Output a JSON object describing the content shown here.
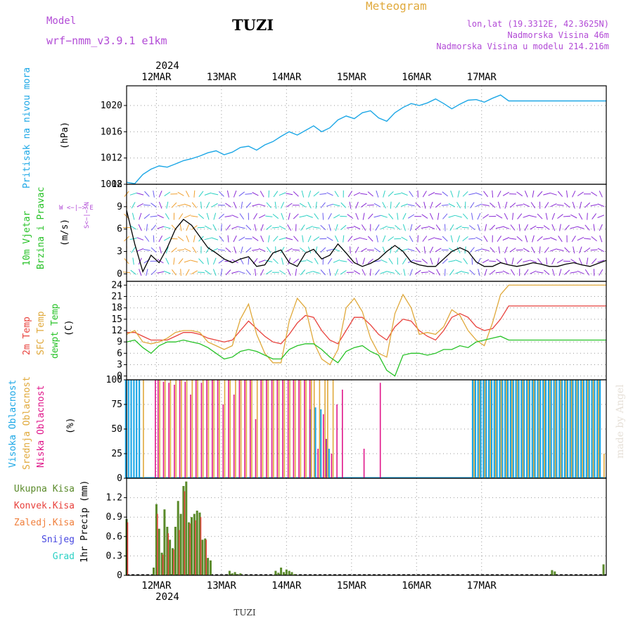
{
  "header": {
    "model_label": "Model",
    "model_name": "wrf−nmm_v3.9.1  e1km",
    "station_title": "TUZI",
    "product_title": "Meteogram",
    "coords": "lon,lat (19.3312E, 42.3625N)",
    "elevation": "Nadmorska Visina 46m",
    "model_elevation": "Nadmorska Visina u modelu 214.216m",
    "footer_station": "TUZI",
    "credit": "made by Angel"
  },
  "colors": {
    "pressure": "#1ca7e6",
    "wind_black": "#000000",
    "temp_2m": "#e8413c",
    "temp_sfc": "#e0a93b",
    "dewpt": "#27c227",
    "cloud_high": "#1ca7e6",
    "cloud_mid": "#e0a93b",
    "cloud_low": "#e0168a",
    "precip_total": "#5a8a2a",
    "precip_conv": "#e8413c",
    "precip_frz": "#f07f3c",
    "snow": "#4646e0",
    "hail": "#2bd1c4",
    "label_magenta": "#b24bd6",
    "label_orange": "#e0a93b"
  },
  "time_axis": {
    "year": "2024",
    "day_labels": [
      "12MAR",
      "13MAR",
      "14MAR",
      "15MAR",
      "16MAR",
      "17MAR"
    ]
  },
  "panels": {
    "pressure": {
      "title": "Pritisak na nivou mora",
      "unit": "(hPa)"
    },
    "wind": {
      "title_line1": "10m Vjetar",
      "title_line2": "Brzina i Pravac",
      "unit": "(m/s)",
      "compass_ew": "W <−|−> E",
      "compass_ns": "S<−|−>N"
    },
    "temp": {
      "title_line1": "2m Temp",
      "title_line2": "SFC Temp",
      "title_line3": "dewpt Temp",
      "unit": "(C)"
    },
    "cloud": {
      "title_line1": "Visoka Oblacnost",
      "title_line2": "Srednja Oblacnost",
      "title_line3": "Niska Oblacnost",
      "unit": "(%)"
    },
    "precip": {
      "unit": "1hr Precip (mm)",
      "legend": [
        "Ukupna Kisa",
        "Konvek.Kisa",
        "Zaledj.Kisa",
        "Snijeg",
        "Grad"
      ]
    }
  },
  "chart_data": [
    {
      "type": "line",
      "name": "pressure",
      "x_unit": "hours from 2024-03-11 13:00",
      "ylim": [
        1008,
        1023
      ],
      "yticks": [
        1008,
        1012,
        1016,
        1020
      ],
      "x": [
        0,
        3,
        6,
        9,
        12,
        15,
        18,
        21,
        24,
        27,
        30,
        33,
        36,
        39,
        42,
        45,
        48,
        51,
        54,
        57,
        60,
        63,
        66,
        69,
        72,
        75,
        78,
        81,
        84,
        87,
        90,
        93,
        96,
        99,
        102,
        105,
        108,
        111,
        114,
        117,
        120,
        123,
        126,
        129,
        132,
        135,
        138,
        141,
        144,
        147,
        150,
        153,
        156,
        159,
        162,
        165,
        168,
        171,
        174,
        177
      ],
      "values": [
        1008.3,
        1008.1,
        1009.5,
        1010.3,
        1010.8,
        1010.6,
        1011.1,
        1011.6,
        1011.9,
        1012.3,
        1012.8,
        1013.1,
        1012.5,
        1012.9,
        1013.6,
        1013.8,
        1013.2,
        1014.0,
        1014.5,
        1015.3,
        1016.0,
        1015.5,
        1016.2,
        1016.9,
        1016.0,
        1016.6,
        1017.8,
        1018.4,
        1018.0,
        1018.9,
        1019.2,
        1018.1,
        1017.6,
        1018.9,
        1019.7,
        1020.3,
        1020.0,
        1020.4,
        1021.0,
        1020.3,
        1019.5,
        1020.2,
        1020.8,
        1020.9,
        1020.5,
        1021.1,
        1021.6,
        1020.7,
        1020.7,
        1020.7,
        1020.7,
        1020.7,
        1020.7,
        1020.7,
        1020.7,
        1020.7,
        1020.7,
        1020.7,
        1020.7,
        1020.7
      ]
    },
    {
      "type": "line",
      "name": "wind_speed",
      "ylim": [
        -1,
        12
      ],
      "yticks": [
        0,
        3,
        6,
        9,
        12
      ],
      "x": [
        0,
        3,
        6,
        9,
        12,
        15,
        18,
        21,
        24,
        27,
        30,
        33,
        36,
        39,
        42,
        45,
        48,
        51,
        54,
        57,
        60,
        63,
        66,
        69,
        72,
        75,
        78,
        81,
        84,
        87,
        90,
        93,
        96,
        99,
        102,
        105,
        108,
        111,
        114,
        117,
        120,
        123,
        126,
        129,
        132,
        135,
        138,
        141,
        144,
        147,
        150,
        153,
        156,
        159,
        162,
        165,
        168,
        171,
        174,
        177
      ],
      "values": [
        8.5,
        4.0,
        0.3,
        2.5,
        1.5,
        3.5,
        6.0,
        7.3,
        6.5,
        5.0,
        3.5,
        2.8,
        2.0,
        1.5,
        2.0,
        2.3,
        1.0,
        1.2,
        2.8,
        3.2,
        1.5,
        1.0,
        2.8,
        3.3,
        2.0,
        2.5,
        4.0,
        2.8,
        1.5,
        1.0,
        1.4,
        2.0,
        3.0,
        3.8,
        3.0,
        1.6,
        1.2,
        1.0,
        1.0,
        2.0,
        3.0,
        3.5,
        3.0,
        1.6,
        1.0,
        1.0,
        1.5,
        1.2,
        1.0,
        1.2,
        1.5,
        1.3,
        1.0,
        1.0,
        1.3,
        1.5,
        1.2,
        1.0,
        1.4,
        1.8
      ]
    },
    {
      "type": "line",
      "name": "temperature",
      "ylim": [
        -1,
        25
      ],
      "yticks": [
        0,
        3,
        6,
        9,
        12,
        15,
        18,
        21,
        24
      ],
      "x": [
        0,
        3,
        6,
        9,
        12,
        15,
        18,
        21,
        24,
        27,
        30,
        33,
        36,
        39,
        42,
        45,
        48,
        51,
        54,
        57,
        60,
        63,
        66,
        69,
        72,
        75,
        78,
        81,
        84,
        87,
        90,
        93,
        96,
        99,
        102,
        105,
        108,
        111,
        114,
        117,
        120,
        123,
        126,
        129,
        132,
        135,
        138,
        141,
        144,
        147,
        150,
        153,
        156,
        159,
        162,
        165,
        168,
        171,
        174,
        177
      ],
      "series": [
        {
          "name": "2m Temp",
          "values": [
            11.5,
            11.5,
            10.5,
            9.5,
            9.5,
            9.5,
            10.5,
            11.5,
            11.5,
            11.0,
            10.0,
            9.5,
            9.0,
            9.5,
            12.0,
            14.5,
            12.5,
            10.5,
            9.0,
            8.5,
            11.0,
            14.0,
            16.0,
            15.5,
            12.0,
            9.5,
            8.5,
            12.0,
            15.5,
            15.5,
            13.5,
            11.0,
            9.5,
            13.0,
            15.0,
            14.5,
            12.0,
            10.5,
            9.5,
            12.0,
            15.5,
            16.5,
            15.5,
            13.0,
            12.0,
            12.5,
            15.0,
            18.5,
            18.5,
            18.5,
            18.5,
            18.5,
            18.5,
            18.5,
            18.5,
            18.5,
            18.5,
            18.5,
            18.5,
            18.5
          ]
        },
        {
          "name": "SFC Temp",
          "values": [
            11.0,
            12.0,
            9.0,
            8.5,
            9.0,
            10.0,
            11.5,
            12.0,
            12.0,
            11.5,
            9.0,
            8.0,
            7.0,
            8.0,
            15.0,
            19.0,
            11.0,
            6.0,
            3.5,
            3.5,
            14.5,
            20.5,
            18.0,
            9.0,
            4.5,
            3.0,
            7.0,
            18.0,
            20.5,
            17.0,
            10.0,
            6.0,
            5.0,
            16.5,
            21.5,
            18.0,
            11.0,
            11.5,
            11.0,
            13.0,
            17.5,
            16.0,
            12.0,
            9.5,
            8.0,
            14.0,
            21.5,
            24.0,
            24.0,
            24.0,
            24.0,
            24.0,
            24.0,
            24.0,
            24.0,
            24.0,
            24.0,
            24.0,
            24.0,
            24.0
          ]
        },
        {
          "name": "dewpt Temp",
          "values": [
            9.0,
            9.5,
            7.5,
            6.0,
            8.0,
            9.0,
            9.0,
            9.5,
            9.0,
            8.5,
            7.5,
            6.0,
            4.5,
            5.0,
            6.5,
            7.0,
            6.5,
            5.5,
            4.5,
            4.5,
            7.0,
            8.0,
            8.5,
            8.5,
            7.0,
            5.0,
            3.5,
            6.5,
            7.5,
            8.0,
            6.5,
            5.5,
            1.5,
            0.0,
            5.5,
            6.0,
            6.0,
            5.5,
            6.0,
            7.0,
            7.0,
            8.0,
            7.5,
            9.0,
            9.5,
            10.0,
            10.5,
            9.5,
            9.5,
            9.5,
            9.5,
            9.5,
            9.5,
            9.5,
            9.5,
            9.5,
            9.5,
            9.5,
            9.5,
            9.5
          ]
        }
      ]
    },
    {
      "type": "bar",
      "name": "cloud_cover",
      "ylim": [
        0,
        100
      ],
      "yticks": [
        0,
        25,
        50,
        75,
        100
      ],
      "x_unit": "hours from 2024-03-11 13:00",
      "series": [
        {
          "name": "Visoka Oblacnost",
          "x": [
            0,
            1,
            2,
            3,
            4,
            5,
            68,
            70,
            72,
            74,
            75,
            128,
            129,
            130,
            131,
            132,
            133,
            134,
            135,
            136,
            137,
            138,
            139,
            140,
            141,
            142,
            143,
            144,
            145,
            146,
            147,
            148,
            149,
            150,
            151,
            152,
            153,
            154,
            155,
            156,
            157,
            158,
            159,
            160,
            161,
            162,
            163,
            164,
            165,
            166,
            167,
            168,
            169,
            170,
            171,
            172,
            173,
            174,
            175
          ],
          "values": [
            100,
            100,
            100,
            100,
            100,
            100,
            70,
            72,
            70,
            40,
            30,
            100,
            100,
            100,
            100,
            100,
            100,
            100,
            100,
            100,
            100,
            100,
            100,
            100,
            100,
            100,
            100,
            100,
            100,
            100,
            100,
            100,
            100,
            100,
            100,
            100,
            100,
            100,
            100,
            100,
            100,
            100,
            100,
            100,
            100,
            100,
            100,
            100,
            100,
            100,
            100,
            100,
            100,
            100,
            100,
            100,
            100,
            100,
            100
          ]
        },
        {
          "name": "Srednja Oblacnost",
          "x": [
            6,
            12,
            14,
            16,
            18,
            20,
            22,
            24,
            26,
            28,
            30,
            32,
            34,
            36,
            38,
            40,
            42,
            44,
            46,
            48,
            50,
            52,
            54,
            56,
            58,
            60,
            62,
            64,
            66,
            68,
            69,
            71,
            73,
            74,
            76,
            128,
            130,
            132,
            134,
            136,
            138,
            140,
            142,
            144,
            146,
            148,
            150,
            152,
            154,
            156,
            158,
            160,
            162,
            164,
            166,
            168,
            170,
            172,
            174,
            176
          ],
          "values": [
            100,
            100,
            100,
            100,
            100,
            100,
            100,
            100,
            100,
            100,
            100,
            100,
            100,
            100,
            100,
            100,
            100,
            100,
            100,
            100,
            100,
            100,
            100,
            100,
            100,
            100,
            100,
            100,
            100,
            100,
            100,
            100,
            100,
            100,
            100,
            100,
            100,
            100,
            100,
            100,
            100,
            100,
            100,
            100,
            100,
            100,
            100,
            100,
            100,
            100,
            100,
            100,
            100,
            100,
            100,
            100,
            100,
            100,
            100,
            25
          ]
        },
        {
          "name": "Niska Oblacnost",
          "x": [
            10,
            11,
            13,
            15,
            17,
            19,
            21,
            23,
            25,
            27,
            29,
            31,
            33,
            35,
            37,
            39,
            41,
            43,
            45,
            47,
            49,
            51,
            53,
            55,
            57,
            59,
            61,
            63,
            65,
            67,
            70,
            72,
            73,
            75,
            77,
            79,
            87,
            93
          ],
          "values": [
            100,
            100,
            98,
            97,
            95,
            100,
            98,
            85,
            100,
            97,
            100,
            100,
            100,
            75,
            100,
            85,
            100,
            100,
            100,
            60,
            100,
            100,
            100,
            100,
            100,
            100,
            100,
            100,
            100,
            100,
            30,
            65,
            40,
            25,
            75,
            90,
            30,
            97
          ]
        }
      ]
    },
    {
      "type": "bar",
      "name": "precipitation",
      "ylim": [
        0,
        1.5
      ],
      "yticks": [
        0,
        0.3,
        0.6,
        0.9,
        1.2
      ],
      "x_unit": "hours from 2024-03-11 13:00",
      "series": [
        {
          "name": "Ukupna Kisa",
          "x": [
            0,
            10,
            11,
            12,
            13,
            14,
            15,
            16,
            17,
            18,
            19,
            20,
            21,
            22,
            23,
            24,
            25,
            26,
            27,
            28,
            29,
            30,
            31,
            38,
            39,
            40,
            41,
            42,
            55,
            56,
            57,
            58,
            59,
            60,
            61,
            62,
            157,
            158,
            176
          ],
          "values": [
            0.87,
            0.12,
            1.1,
            0.72,
            0.35,
            1.02,
            0.75,
            0.55,
            0.42,
            0.75,
            1.15,
            0.95,
            1.38,
            1.45,
            0.82,
            0.9,
            0.95,
            1.0,
            0.97,
            0.55,
            0.57,
            0.27,
            0.23,
            0.07,
            0.03,
            0.05,
            0.02,
            0.03,
            0.07,
            0.04,
            0.12,
            0.05,
            0.09,
            0.07,
            0.05,
            0.02,
            0.08,
            0.06,
            0.17
          ]
        },
        {
          "name": "Konvek.Kisa",
          "x": [
            0,
            11,
            13,
            15,
            17,
            19,
            21,
            23,
            25,
            27,
            29
          ],
          "values": [
            0.82,
            0.95,
            0.32,
            0.65,
            0.4,
            0.7,
            1.3,
            0.8,
            0.85,
            0.9,
            0.55
          ]
        },
        {
          "name": "Zaledj.Kisa",
          "x": [],
          "values": []
        },
        {
          "name": "Snijeg",
          "x": [],
          "values": []
        },
        {
          "name": "Grad",
          "x": [],
          "values": []
        }
      ]
    }
  ]
}
